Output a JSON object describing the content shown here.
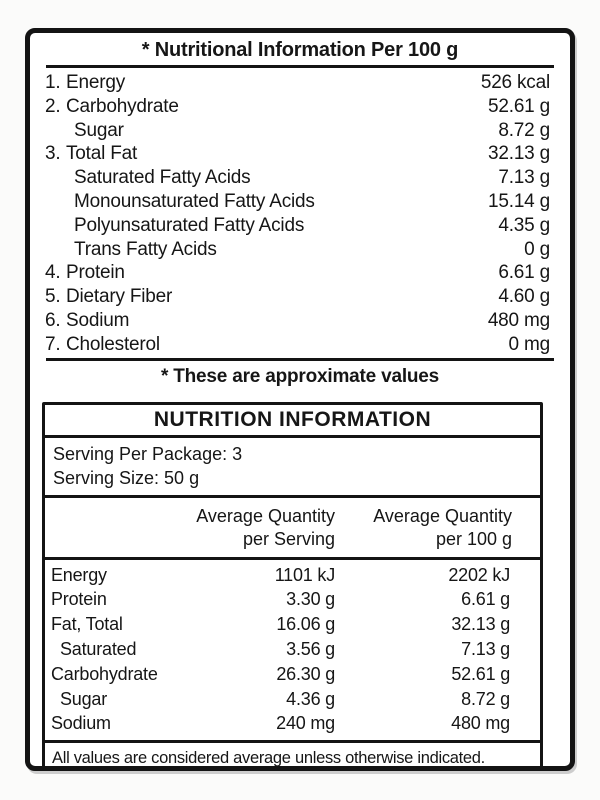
{
  "top_panel": {
    "title": "* Nutritional Information Per 100 g",
    "rows": [
      {
        "prefix": "1.",
        "name": "Energy",
        "value": "526 kcal"
      },
      {
        "prefix": "2.",
        "name": "Carbohydrate",
        "value": "52.61 g"
      },
      {
        "prefix": "",
        "name": "Sugar",
        "value": "8.72 g"
      },
      {
        "prefix": "3.",
        "name": "Total Fat",
        "value": "32.13 g"
      },
      {
        "prefix": "",
        "name": "Saturated Fatty Acids",
        "value": "7.13 g"
      },
      {
        "prefix": "",
        "name": "Monounsaturated Fatty Acids",
        "value": "15.14 g"
      },
      {
        "prefix": "",
        "name": "Polyunsaturated Fatty Acids",
        "value": "4.35 g"
      },
      {
        "prefix": "",
        "name": "Trans Fatty Acids",
        "value": "0 g"
      },
      {
        "prefix": "4.",
        "name": "Protein",
        "value": "6.61 g"
      },
      {
        "prefix": "5.",
        "name": "Dietary Fiber",
        "value": "4.60 g"
      },
      {
        "prefix": "6.",
        "name": "Sodium",
        "value": "480 mg"
      },
      {
        "prefix": "7.",
        "name": "Cholesterol",
        "value": "0 mg"
      }
    ],
    "footnote": "* These are approximate values"
  },
  "nutrition_table": {
    "title": "NUTRITION INFORMATION",
    "serving_per_package": "Serving Per Package: 3",
    "serving_size": "Serving Size: 50 g",
    "columns": {
      "serving_header": "Average Quantity\nper Serving",
      "per_100g_header": "Average Quantity\nper 100 g"
    },
    "rows": [
      {
        "name": "Energy",
        "serving": "1101 kJ",
        "per_100g": "2202 kJ"
      },
      {
        "name": "Protein",
        "serving": "3.30 g",
        "per_100g": "6.61 g"
      },
      {
        "name": "Fat, Total",
        "serving": "16.06 g",
        "per_100g": "32.13 g"
      },
      {
        "name": "Saturated",
        "serving": "3.56 g",
        "per_100g": "7.13 g"
      },
      {
        "name": "Carbohydrate",
        "serving": "26.30 g",
        "per_100g": "52.61 g"
      },
      {
        "name": "Sugar",
        "serving": "4.36 g",
        "per_100g": "8.72 g"
      },
      {
        "name": "Sodium",
        "serving": "240 mg",
        "per_100g": "480 mg"
      }
    ],
    "footer": "All values are considered average unless otherwise indicated."
  }
}
